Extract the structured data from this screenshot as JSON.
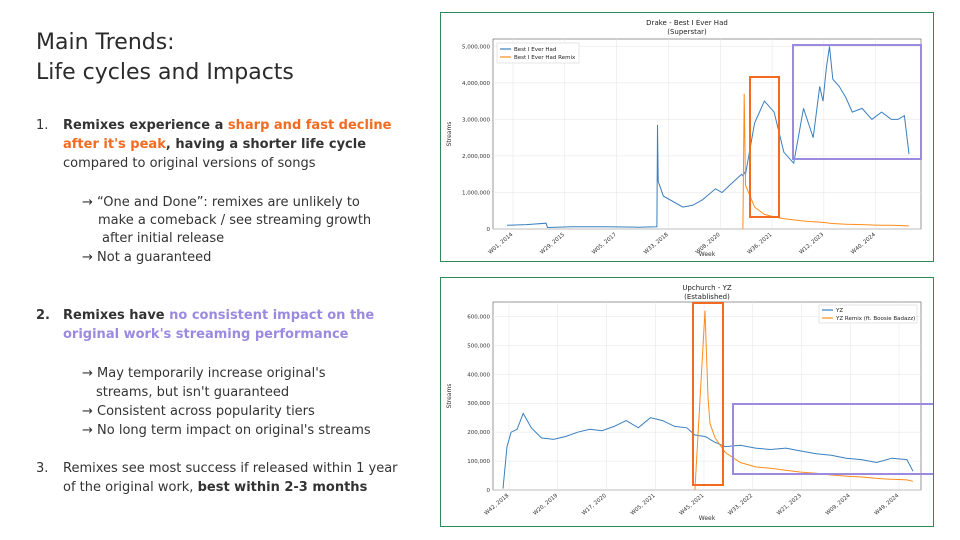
{
  "title": {
    "line1": "Main Trends:",
    "line2": "Life cycles and Impacts"
  },
  "points": [
    {
      "num": "1.",
      "pre": "Remixes experience a ",
      "highlight1": "sharp and fast decline",
      "highlight2": "after it's peak",
      "mid": ", having a shorter life cycle",
      "line3": "compared to original versions of songs",
      "subs": [
        "→ “One and Done”: remixes are unlikely to",
        "make a comeback / see streaming growth",
        "after initial release",
        "→  Not a guaranteed"
      ]
    },
    {
      "num": "2.",
      "pre": "Remixes have ",
      "highlight1": "no consistent impact on the",
      "highlight2": "original work's streaming performance",
      "subs": [
        "→ May temporarily increase original's",
        "streams, but isn't guaranteed",
        "→ Consistent across popularity tiers",
        "→ No long term impact on original's streams"
      ]
    },
    {
      "num": "3.",
      "line1": "Remixes see most success if released within 1 year",
      "line2_pre": "of the original work, ",
      "line2_bold": "best within 2-3 months"
    }
  ],
  "colors": {
    "orange": "#f26b21",
    "purple": "#9b8ae0",
    "blue": "#3a7fbf",
    "series_orange": "#ff8c1a",
    "frame": "#2e8b57"
  },
  "chart_data": [
    {
      "type": "line",
      "title": "Drake - Best I Ever Had",
      "subtitle": "(Superstar)",
      "xlabel": "Week",
      "ylabel": "Streams",
      "xticks": [
        "W01, 2014",
        "W29, 2015",
        "W05, 2017",
        "W33, 2018",
        "W08, 2020",
        "W36, 2021",
        "W12, 2023",
        "W40, 2024"
      ],
      "yticks": [
        "0",
        "1,000,000",
        "2,000,000",
        "3,000,000",
        "4,000,000",
        "5,000,000"
      ],
      "ylim": [
        0,
        5200000
      ],
      "legend": [
        "Best I Ever Had",
        "Best I Ever Had Remix"
      ],
      "x": [
        0,
        30,
        60,
        62,
        100,
        150,
        200,
        230,
        231,
        232,
        240,
        270,
        285,
        300,
        320,
        330,
        345,
        360,
        362,
        364,
        366,
        380,
        395,
        410,
        425,
        440,
        455,
        470,
        480,
        485,
        490,
        495,
        500,
        510,
        520,
        530,
        545,
        560,
        575,
        590,
        600,
        610,
        617
      ],
      "series": [
        {
          "name": "Best I Ever Had",
          "values": [
            100000,
            120000,
            160000,
            40000,
            60000,
            60000,
            50000,
            60000,
            2850000,
            1300000,
            900000,
            600000,
            650000,
            800000,
            1100000,
            1000000,
            1250000,
            1500000,
            1450000,
            1550000,
            1500000,
            2900000,
            3500000,
            3200000,
            2100000,
            1800000,
            3300000,
            2500000,
            3900000,
            3500000,
            4400000,
            5000000,
            4100000,
            3900000,
            3600000,
            3200000,
            3300000,
            3000000,
            3200000,
            3000000,
            3000000,
            3100000,
            2050000
          ]
        },
        {
          "name": "Best I Ever Had Remix",
          "values": [
            null,
            null,
            null,
            null,
            null,
            null,
            null,
            null,
            null,
            null,
            null,
            null,
            null,
            null,
            null,
            null,
            null,
            null,
            0,
            3700000,
            1200000,
            600000,
            400000,
            330000,
            280000,
            250000,
            220000,
            200000,
            190000,
            180000,
            170000,
            160000,
            150000,
            140000,
            130000,
            125000,
            120000,
            110000,
            105000,
            100000,
            95000,
            90000,
            85000
          ]
        }
      ]
    },
    {
      "type": "line",
      "title": "Upchurch - YZ",
      "subtitle": "(Established)",
      "xlabel": "Week",
      "ylabel": "Streams",
      "xticks": [
        "W42, 2018",
        "W20, 2019",
        "W17, 2020",
        "W05, 2021",
        "W45, 2021",
        "W33, 2022",
        "W21, 2023",
        "W09, 2024",
        "W49, 2024"
      ],
      "yticks": [
        "0",
        "100,000",
        "200,000",
        "300,000",
        "400,000",
        "500,000",
        "600,000"
      ],
      "ylim": [
        0,
        650000
      ],
      "legend": [
        "YZ",
        "YZ Remix (ft. Boosie Badazz)"
      ],
      "x": [
        0,
        4,
        8,
        14,
        20,
        28,
        38,
        50,
        62,
        74,
        86,
        98,
        110,
        122,
        134,
        146,
        158,
        170,
        182,
        190,
        200,
        203,
        205,
        210,
        220,
        235,
        250,
        265,
        280,
        295,
        310,
        325,
        340,
        355,
        370,
        385,
        400,
        406
      ],
      "series": [
        {
          "name": "YZ",
          "values": [
            5000,
            150000,
            200000,
            210000,
            265000,
            215000,
            180000,
            175000,
            185000,
            200000,
            210000,
            205000,
            220000,
            240000,
            215000,
            250000,
            240000,
            220000,
            215000,
            190000,
            185000,
            180000,
            175000,
            165000,
            150000,
            155000,
            145000,
            140000,
            145000,
            135000,
            125000,
            120000,
            110000,
            105000,
            95000,
            110000,
            105000,
            65000
          ]
        },
        {
          "name": "YZ Remix (ft. Boosie Badazz)",
          "values": [
            null,
            null,
            null,
            null,
            null,
            null,
            null,
            null,
            null,
            null,
            null,
            null,
            null,
            null,
            null,
            null,
            null,
            null,
            null,
            0,
            620000,
            320000,
            230000,
            180000,
            130000,
            95000,
            80000,
            75000,
            68000,
            62000,
            58000,
            52000,
            48000,
            45000,
            40000,
            37000,
            35000,
            30000
          ]
        }
      ]
    }
  ]
}
